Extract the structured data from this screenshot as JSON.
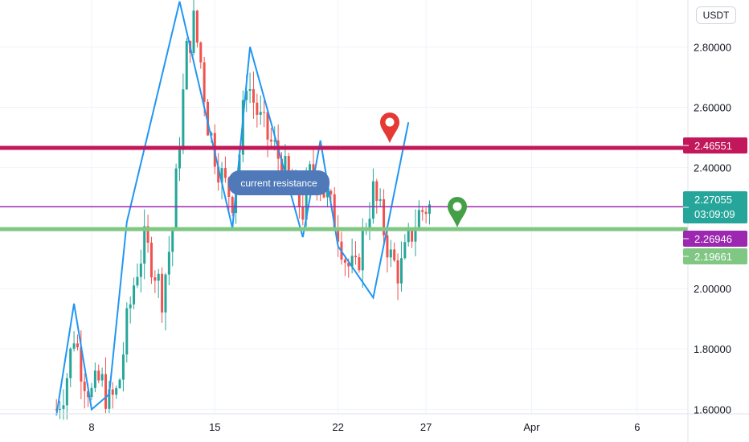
{
  "header": {
    "currency": "USDT"
  },
  "annotation": {
    "text": "current resistance"
  },
  "chart_data": {
    "type": "candlestick",
    "ylim": [
      1.585,
      2.955
    ],
    "y_ticks": [
      "2.80000",
      "2.60000",
      "2.40000",
      "2.00000",
      "1.80000",
      "1.60000"
    ],
    "x_ticks": [
      "8",
      "15",
      "22",
      "27",
      "Apr",
      "6"
    ],
    "horizontal_lines": [
      {
        "name": "resistance",
        "value": 2.46551,
        "label": "2.46551",
        "color": "#c2185b"
      },
      {
        "name": "current-price",
        "value": 2.27055,
        "label": "2.27055",
        "countdown": "03:09:09",
        "color": "#9c27b0",
        "tag_color": "#26a69a"
      },
      {
        "name": "purple-marker",
        "value": 2.26946,
        "label": "2.26946",
        "color": "#9c27b0"
      },
      {
        "name": "support",
        "value": 2.19661,
        "label": "2.19661",
        "color": "#81c784"
      }
    ],
    "zigzag": [
      [
        6,
        1.58
      ],
      [
        7,
        1.95
      ],
      [
        8,
        1.6
      ],
      [
        9,
        1.65
      ],
      [
        10,
        2.22
      ],
      [
        13,
        2.95
      ],
      [
        16,
        2.2
      ],
      [
        17,
        2.8
      ],
      [
        20,
        2.17
      ],
      [
        21,
        2.49
      ],
      [
        22,
        2.14
      ],
      [
        24,
        1.97
      ],
      [
        26,
        2.55
      ]
    ],
    "pins": [
      {
        "name": "sell-pin",
        "color": "#e53935",
        "x": 26.5,
        "y": 2.52
      },
      {
        "name": "buy-pin",
        "color": "#43a047",
        "x": 31.5,
        "y": 2.25
      }
    ],
    "colors": {
      "up": "#26a69a",
      "down": "#ef5350",
      "zigzag": "#2196f3"
    },
    "candles_note": "hourly candles over 6–28 March, ~2.0–2.9 range",
    "candle_anchors": [
      [
        6,
        1.6
      ],
      [
        6.5,
        1.68
      ],
      [
        7,
        1.85
      ],
      [
        7.5,
        1.72
      ],
      [
        8,
        1.65
      ],
      [
        8.5,
        1.7
      ],
      [
        9,
        1.62
      ],
      [
        9.5,
        1.66
      ],
      [
        10,
        1.88
      ],
      [
        10.5,
        2.05
      ],
      [
        11,
        2.15
      ],
      [
        11.5,
        2.08
      ],
      [
        12,
        1.98
      ],
      [
        12.6,
        2.2
      ],
      [
        13,
        2.5
      ],
      [
        13.4,
        2.78
      ],
      [
        13.8,
        2.88
      ],
      [
        14.2,
        2.75
      ],
      [
        14.6,
        2.55
      ],
      [
        15,
        2.45
      ],
      [
        15.5,
        2.35
      ],
      [
        16,
        2.3
      ],
      [
        16.4,
        2.45
      ],
      [
        16.8,
        2.7
      ],
      [
        17.2,
        2.62
      ],
      [
        17.6,
        2.55
      ],
      [
        18,
        2.5
      ],
      [
        18.5,
        2.45
      ],
      [
        19,
        2.38
      ],
      [
        19.5,
        2.32
      ],
      [
        20,
        2.26
      ],
      [
        20.5,
        2.4
      ],
      [
        21,
        2.35
      ],
      [
        21.5,
        2.28
      ],
      [
        22,
        2.2
      ],
      [
        22.5,
        2.08
      ],
      [
        23,
        2.05
      ],
      [
        23.5,
        2.2
      ],
      [
        24,
        2.32
      ],
      [
        24.5,
        2.22
      ],
      [
        25,
        2.1
      ],
      [
        25.5,
        2.05
      ],
      [
        26,
        2.15
      ],
      [
        26.5,
        2.24
      ],
      [
        27,
        2.27
      ]
    ]
  }
}
